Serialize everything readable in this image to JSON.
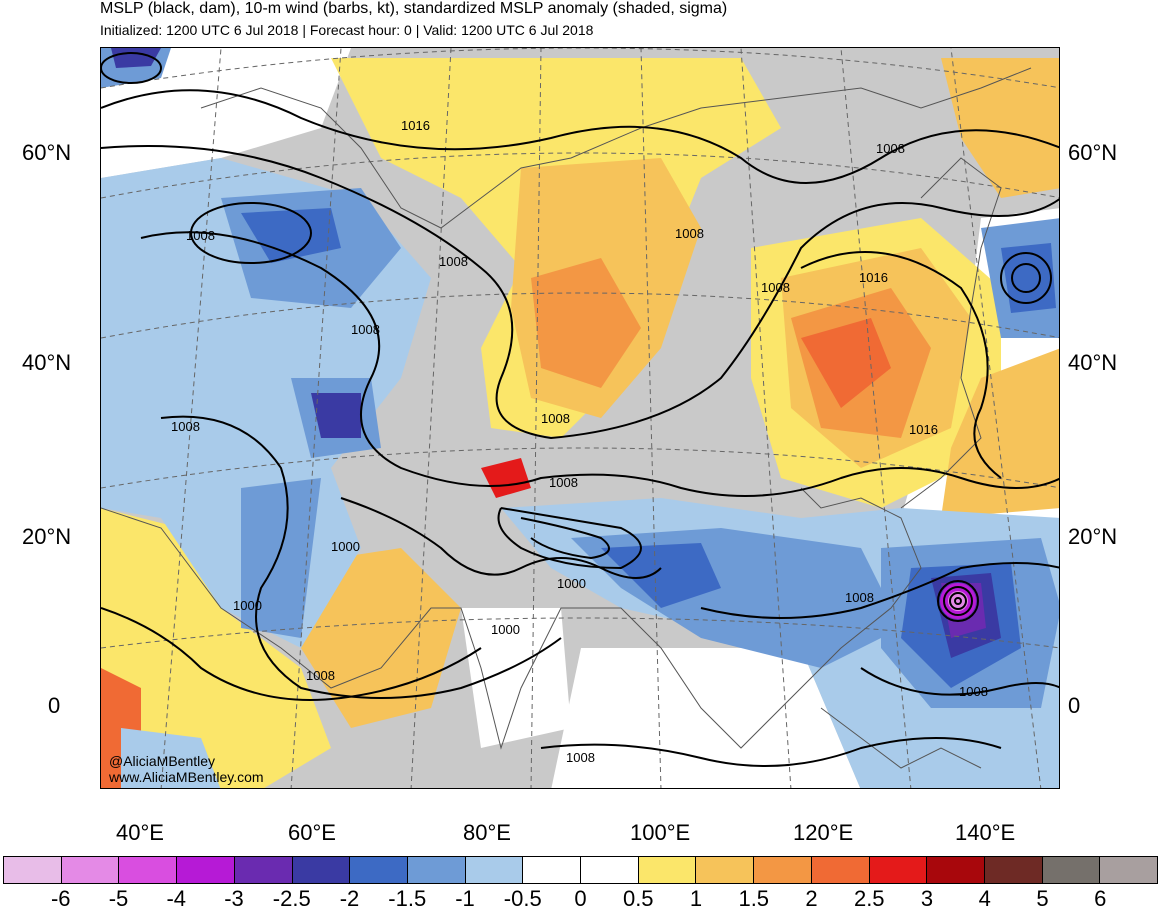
{
  "title": "MSLP (black, dam), 10-m wind (barbs, kt), standardized MSLP anomaly (shaded, sigma)",
  "subtitle": "Initialized: 1200 UTC 6 Jul 2018 | Forecast hour: 0 | Valid: 1200 UTC 6 Jul 2018",
  "lat_labels": [
    "60°N",
    "40°N",
    "20°N",
    "0"
  ],
  "lon_labels": [
    "40°E",
    "60°E",
    "80°E",
    "100°E",
    "120°E",
    "140°E"
  ],
  "credit": [
    "@AliciaMBentley",
    "www.AliciaMBentley.com"
  ],
  "isobar_labels": [
    "1016",
    "1008",
    "1008",
    "1008",
    "1008",
    "1008",
    "1008",
    "1008",
    "1016",
    "1016",
    "1008",
    "1000",
    "1000",
    "1000",
    "1000",
    "1008",
    "1008",
    "1008",
    "1008",
    "1008"
  ],
  "colorbar": {
    "colors": [
      "#e8bde8",
      "#e48ae6",
      "#d94ee0",
      "#b61ad6",
      "#6a2bb0",
      "#3a3aa3",
      "#3d6ac4",
      "#6e9bd6",
      "#a9cbea",
      "#ffffff",
      "#ffffff",
      "#fbe66a",
      "#f6c35a",
      "#f39744",
      "#f06a34",
      "#e41a1a",
      "#a8070c",
      "#6e2a25",
      "#75706b",
      "#a89f9f"
    ],
    "ticks": [
      "-6",
      "-5",
      "-4",
      "-3",
      "-2.5",
      "-2",
      "-1.5",
      "-1",
      "-0.5",
      "0",
      "0.5",
      "1",
      "1.5",
      "2",
      "2.5",
      "3",
      "4",
      "5",
      "6"
    ]
  }
}
